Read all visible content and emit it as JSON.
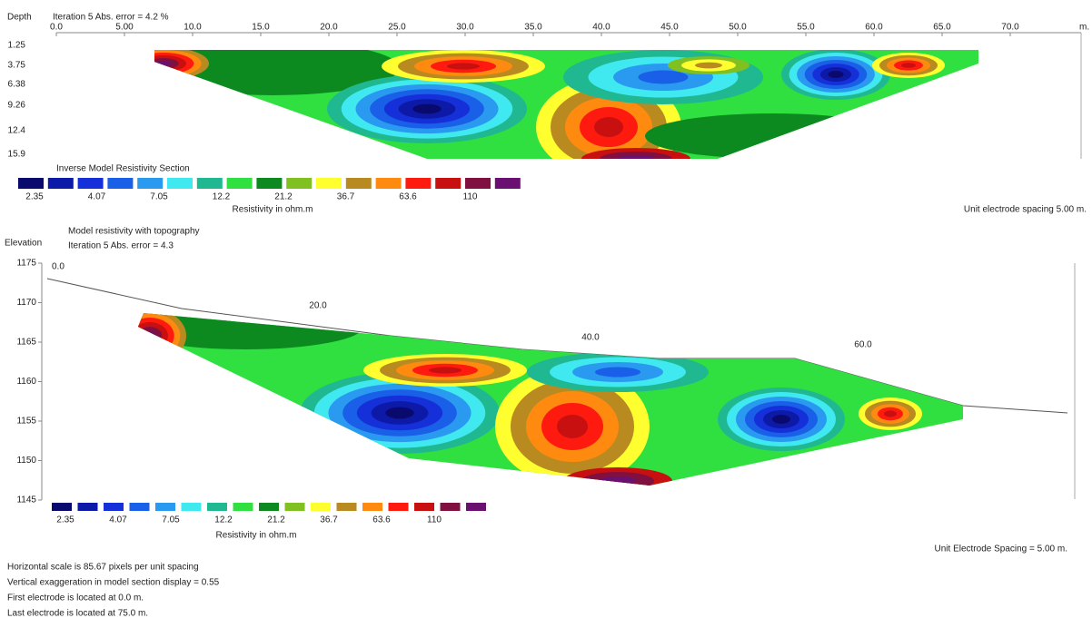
{
  "top_section": {
    "depth_label": "Depth",
    "iteration": "Iteration 5 Abs. error = 4.2 %",
    "x_ticks": [
      "0.0",
      "5.00",
      "10.0",
      "15.0",
      "20.0",
      "25.0",
      "30.0",
      "35.0",
      "40.0",
      "45.0",
      "50.0",
      "55.0",
      "60.0",
      "65.0",
      "70.0"
    ],
    "unit": "m.",
    "depth_ticks": [
      "1.25",
      "3.75",
      "6.38",
      "9.26",
      "12.4",
      "15.9"
    ],
    "legend_title": "Inverse Model Resistivity Section",
    "legend_labels": [
      "2.35",
      "4.07",
      "7.05",
      "12.2",
      "21.2",
      "36.7",
      "63.6",
      "110"
    ],
    "legend_axis": "Resistivity in ohm.m",
    "spacing": "Unit electrode spacing 5.00 m."
  },
  "bottom_section": {
    "title": "Model resistivity with topography",
    "iteration": "Iteration 5 Abs. error = 4.3",
    "elevation_label": "Elevation",
    "elevation_ticks": [
      "1175",
      "1170",
      "1165",
      "1160",
      "1155",
      "1150",
      "1145"
    ],
    "distance_labels": [
      "0.0",
      "20.0",
      "40.0",
      "60.0"
    ],
    "legend_labels": [
      "2.35",
      "4.07",
      "7.05",
      "12.2",
      "21.2",
      "36.7",
      "63.6",
      "110"
    ],
    "legend_axis": "Resistivity in ohm.m",
    "spacing": "Unit Electrode Spacing = 5.00 m."
  },
  "palette": [
    "#0a0a6e",
    "#0d1aa8",
    "#1530d8",
    "#1a5fe8",
    "#2a9af0",
    "#40e8f0",
    "#20b890",
    "#30e040",
    "#0c8a20",
    "#80c020",
    "#ffff30",
    "#b88a20",
    "#ff8a10",
    "#ff1a10",
    "#c81010",
    "#801040",
    "#6a1070"
  ],
  "notes": [
    "Horizontal scale is 85.67 pixels per unit spacing",
    "Vertical exaggeration in model section display = 0.55",
    "First electrode is located at 0.0  m.",
    "Last electrode is located at 75.0 m."
  ]
}
